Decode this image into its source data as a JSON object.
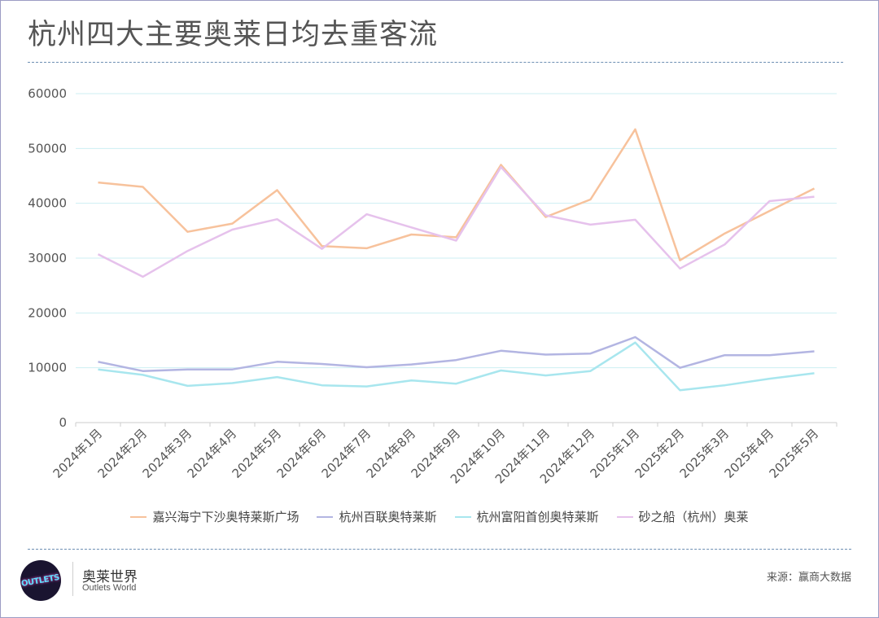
{
  "title": "杭州四大主要奥莱日均去重客流",
  "brand": {
    "name_cn": "奥莱世界",
    "name_en": "Outlets World",
    "logo_text": "OUTLETS"
  },
  "source": "来源：赢商大数据",
  "colors": {
    "grid": "#cdeff3",
    "axis": "#cccccc",
    "text": "#555555"
  },
  "chart_data": {
    "type": "line",
    "categories": [
      "2024年1月",
      "2024年2月",
      "2024年3月",
      "2024年4月",
      "2024年5月",
      "2024年6月",
      "2024年7月",
      "2024年8月",
      "2024年9月",
      "2024年10月",
      "2024年11月",
      "2024年12月",
      "2025年1月",
      "2025年2月",
      "2025年3月",
      "2025年4月",
      "2025年5月"
    ],
    "ylim": [
      0,
      60000
    ],
    "yticks": [
      0,
      10000,
      20000,
      30000,
      40000,
      50000,
      60000
    ],
    "grid": true,
    "legend_position": "bottom",
    "series": [
      {
        "name": "嘉兴海宁下沙奥特莱斯广场",
        "color": "#f7c29c",
        "values": [
          43800,
          43000,
          34800,
          36300,
          42400,
          32200,
          31800,
          34300,
          33800,
          47000,
          37500,
          40700,
          53500,
          29600,
          34500,
          38600,
          42700
        ]
      },
      {
        "name": "杭州百联奥特莱斯",
        "color": "#b3b5e2",
        "values": [
          11100,
          9400,
          9700,
          9700,
          11100,
          10700,
          10100,
          10600,
          11400,
          13100,
          12400,
          12600,
          15600,
          10000,
          12300,
          12300,
          13000
        ]
      },
      {
        "name": "杭州富阳首创奥特莱斯",
        "color": "#a8e6ee",
        "values": [
          9700,
          8700,
          6700,
          7200,
          8300,
          6800,
          6600,
          7700,
          7100,
          9500,
          8600,
          9400,
          14600,
          5900,
          6800,
          8000,
          9000
        ]
      },
      {
        "name": "砂之船（杭州）奥莱",
        "color": "#e6c2ec",
        "values": [
          30700,
          26600,
          31300,
          35200,
          37100,
          31700,
          38000,
          35600,
          33200,
          46600,
          37800,
          36100,
          37000,
          28100,
          32500,
          40400,
          41200
        ]
      }
    ]
  }
}
